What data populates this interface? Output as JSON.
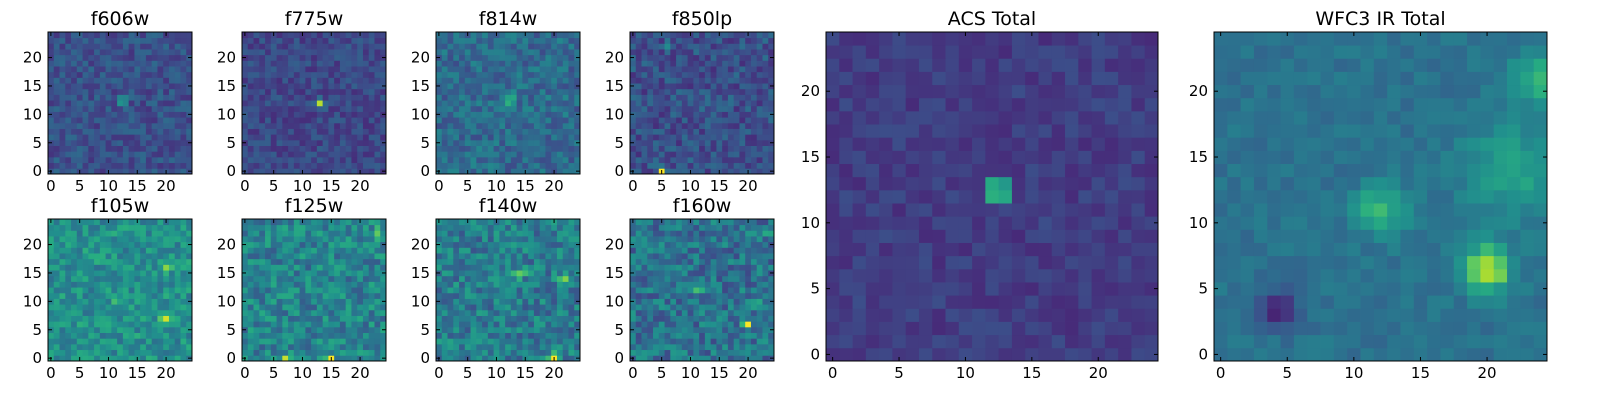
{
  "chart_data": [
    {
      "type": "heatmap",
      "key": "f606w",
      "title": "f606w",
      "xlim": [
        0,
        25
      ],
      "ylim": [
        0,
        25
      ],
      "xticks": [
        0,
        5,
        10,
        15,
        20
      ],
      "yticks": [
        0,
        5,
        10,
        15,
        20
      ],
      "size": 25,
      "background": 0.25,
      "noise": 0.1,
      "features": [
        {
          "x": 12.5,
          "y": 12.5,
          "amp": 0.75,
          "sigma": 0.5
        }
      ]
    },
    {
      "type": "heatmap",
      "key": "f775w",
      "title": "f775w",
      "xlim": [
        0,
        25
      ],
      "ylim": [
        0,
        25
      ],
      "xticks": [
        0,
        5,
        10,
        15,
        20
      ],
      "yticks": [
        0,
        5,
        10,
        15,
        20
      ],
      "size": 25,
      "background": 0.22,
      "noise": 0.09,
      "features": [
        {
          "x": 13,
          "y": 12,
          "amp": 0.75,
          "sigma": 0.5
        }
      ]
    },
    {
      "type": "heatmap",
      "key": "f814w",
      "title": "f814w",
      "xlim": [
        0,
        25
      ],
      "ylim": [
        0,
        25
      ],
      "xticks": [
        0,
        5,
        10,
        15,
        20
      ],
      "yticks": [
        0,
        5,
        10,
        15,
        20
      ],
      "size": 25,
      "background": 0.35,
      "noise": 0.12,
      "features": [
        {
          "x": 12.5,
          "y": 12.5,
          "amp": 0.55,
          "sigma": 0.6
        }
      ]
    },
    {
      "type": "heatmap",
      "key": "f850lp",
      "title": "f850lp",
      "xlim": [
        0,
        25
      ],
      "ylim": [
        0,
        25
      ],
      "xticks": [
        0,
        5,
        10,
        15,
        20
      ],
      "yticks": [
        0,
        5,
        10,
        15,
        20
      ],
      "size": 25,
      "background": 0.25,
      "noise": 0.12,
      "features": [
        {
          "x": 5,
          "y": 0,
          "amp": 0.75,
          "sigma": 0.5
        },
        {
          "x": 6,
          "y": 22,
          "amp": 0.35,
          "sigma": 0.5
        }
      ]
    },
    {
      "type": "heatmap",
      "key": "f105w",
      "title": "f105w",
      "xlim": [
        0,
        25
      ],
      "ylim": [
        0,
        25
      ],
      "xticks": [
        0,
        5,
        10,
        15,
        20
      ],
      "yticks": [
        0,
        5,
        10,
        15,
        20
      ],
      "size": 25,
      "background": 0.5,
      "noise": 0.14,
      "features": [
        {
          "x": 20,
          "y": 7,
          "amp": 0.45,
          "sigma": 0.7
        },
        {
          "x": 20,
          "y": 16,
          "amp": 0.25,
          "sigma": 0.6
        },
        {
          "x": 12,
          "y": 10,
          "amp": 0.2,
          "sigma": 0.7
        }
      ]
    },
    {
      "type": "heatmap",
      "key": "f125w",
      "title": "f125w",
      "xlim": [
        0,
        25
      ],
      "ylim": [
        0,
        25
      ],
      "xticks": [
        0,
        5,
        10,
        15,
        20
      ],
      "yticks": [
        0,
        5,
        10,
        15,
        20
      ],
      "size": 25,
      "background": 0.45,
      "noise": 0.16,
      "features": [
        {
          "x": 15,
          "y": 0,
          "amp": 0.55,
          "sigma": 0.5
        },
        {
          "x": 7,
          "y": 0,
          "amp": 0.35,
          "sigma": 0.6
        },
        {
          "x": 23,
          "y": 22,
          "amp": 0.3,
          "sigma": 0.7
        }
      ]
    },
    {
      "type": "heatmap",
      "key": "f140w",
      "title": "f140w",
      "xlim": [
        0,
        25
      ],
      "ylim": [
        0,
        25
      ],
      "xticks": [
        0,
        5,
        10,
        15,
        20
      ],
      "yticks": [
        0,
        5,
        10,
        15,
        20
      ],
      "size": 25,
      "background": 0.42,
      "noise": 0.16,
      "features": [
        {
          "x": 14,
          "y": 15,
          "amp": 0.5,
          "sigma": 0.6
        },
        {
          "x": 20,
          "y": 0,
          "amp": 0.5,
          "sigma": 0.6
        },
        {
          "x": 22,
          "y": 14,
          "amp": 0.3,
          "sigma": 0.8
        }
      ]
    },
    {
      "type": "heatmap",
      "key": "f160w",
      "title": "f160w",
      "xlim": [
        0,
        25
      ],
      "ylim": [
        0,
        25
      ],
      "xticks": [
        0,
        5,
        10,
        15,
        20
      ],
      "yticks": [
        0,
        5,
        10,
        15,
        20
      ],
      "size": 25,
      "background": 0.38,
      "noise": 0.16,
      "features": [
        {
          "x": 20,
          "y": 6,
          "amp": 0.55,
          "sigma": 0.6
        },
        {
          "x": 11,
          "y": 12,
          "amp": 0.35,
          "sigma": 0.7
        },
        {
          "x": 24,
          "y": 22,
          "amp": 0.35,
          "sigma": 0.6
        },
        {
          "x": 22,
          "y": 10,
          "amp": 0.3,
          "sigma": 0.7
        }
      ]
    },
    {
      "type": "heatmap",
      "key": "acs-total",
      "title": "ACS Total",
      "xlim": [
        0,
        25
      ],
      "ylim": [
        0,
        25
      ],
      "xticks": [
        0,
        5,
        10,
        15,
        20
      ],
      "yticks": [
        0,
        5,
        10,
        15,
        20
      ],
      "size": 25,
      "background": 0.18,
      "noise": 0.06,
      "features": [
        {
          "x": 12.5,
          "y": 12.5,
          "amp": 0.8,
          "sigma": 0.6
        }
      ]
    },
    {
      "type": "heatmap",
      "key": "wfc3-ir-total",
      "title": "WFC3 IR Total",
      "xlim": [
        0,
        25
      ],
      "ylim": [
        0,
        25
      ],
      "xticks": [
        0,
        5,
        10,
        15,
        20
      ],
      "yticks": [
        0,
        5,
        10,
        15,
        20
      ],
      "size": 25,
      "background": 0.38,
      "noise": 0.05,
      "features": [
        {
          "x": 20,
          "y": 6.5,
          "amp": 0.55,
          "sigma": 1.2
        },
        {
          "x": 12,
          "y": 11,
          "amp": 0.3,
          "sigma": 1.3
        },
        {
          "x": 22,
          "y": 14,
          "amp": 0.2,
          "sigma": 2.5
        },
        {
          "x": 24,
          "y": 21,
          "amp": 0.25,
          "sigma": 1.5
        },
        {
          "x": 4.5,
          "y": 3.5,
          "amp": -0.3,
          "sigma": 1.0
        }
      ]
    }
  ]
}
